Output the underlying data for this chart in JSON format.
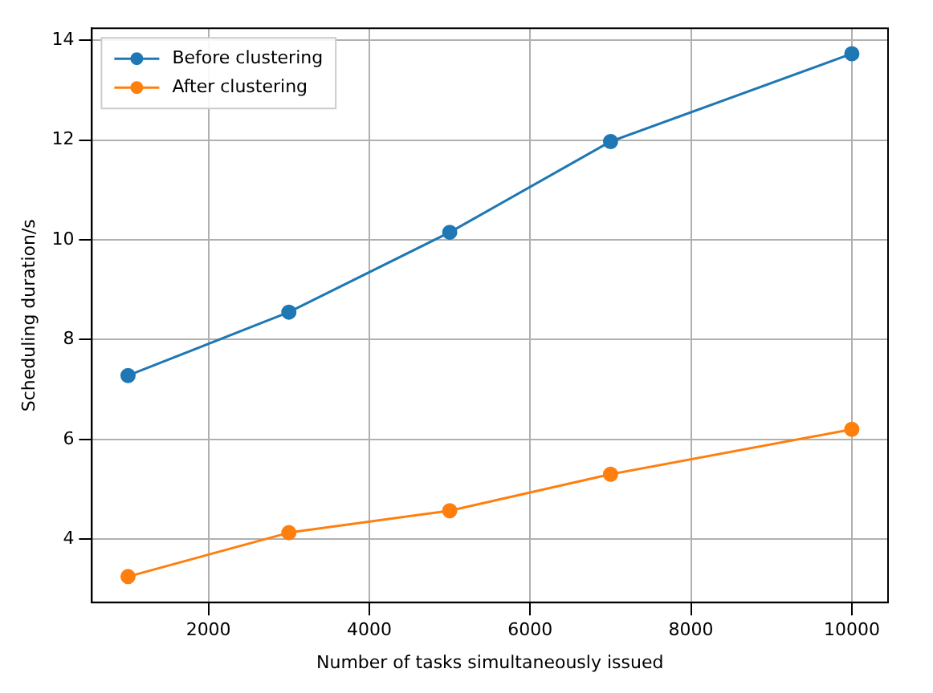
{
  "chart_data": {
    "type": "line",
    "xlabel": "Number of tasks simultaneously issued",
    "ylabel": "Scheduling duration/s",
    "x": [
      1000,
      3000,
      5000,
      7000,
      10000
    ],
    "series": [
      {
        "name": "Before clustering",
        "color": "#1f77b4",
        "values": [
          7.28,
          8.55,
          10.15,
          11.97,
          13.73
        ]
      },
      {
        "name": "After clustering",
        "color": "#ff7f0e",
        "values": [
          3.25,
          4.13,
          4.57,
          5.3,
          6.2
        ]
      }
    ],
    "xlim": [
      550,
      10450
    ],
    "xticks": [
      2000,
      4000,
      6000,
      8000,
      10000
    ],
    "ylim": [
      2.73,
      14.24
    ],
    "yticks": [
      4,
      6,
      8,
      10,
      12,
      14
    ],
    "grid": true,
    "legend": "top left",
    "marker": "circle",
    "line_style": "solid"
  }
}
